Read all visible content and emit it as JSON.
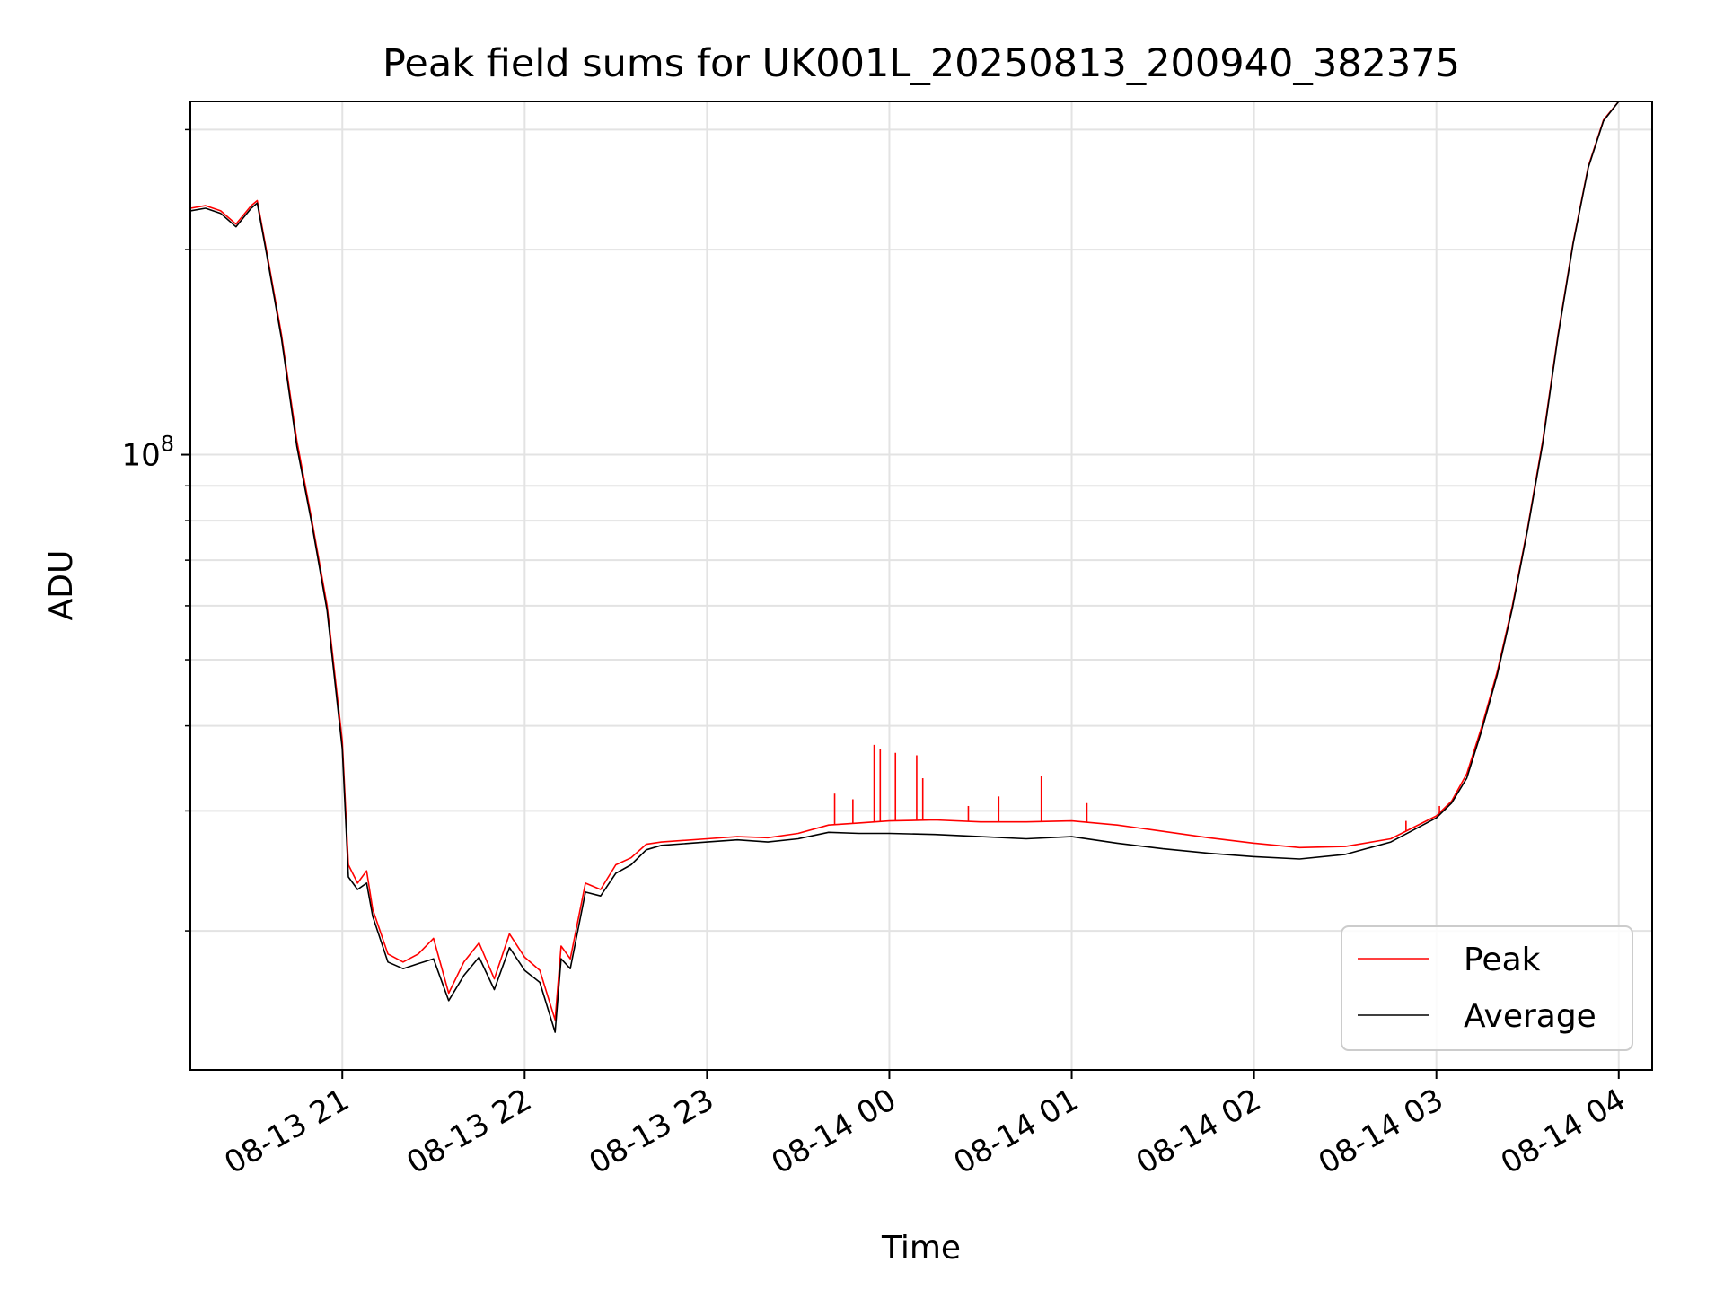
{
  "chart_data": {
    "type": "line",
    "title": "Peak field sums for UK001L_20250813_200940_382375",
    "xlabel": "Time",
    "ylabel": "ADU",
    "y_scale": "log",
    "ylim": [
      12500000,
      330000000
    ],
    "xlim": [
      "2025-08-13 20:10",
      "2025-08-14 04:11"
    ],
    "x_ticks": [
      {
        "t": "2025-08-13 21:00",
        "label": "08-13 21"
      },
      {
        "t": "2025-08-13 22:00",
        "label": "08-13 22"
      },
      {
        "t": "2025-08-13 23:00",
        "label": "08-13 23"
      },
      {
        "t": "2025-08-14 00:00",
        "label": "08-14 00"
      },
      {
        "t": "2025-08-14 01:00",
        "label": "08-14 01"
      },
      {
        "t": "2025-08-14 02:00",
        "label": "08-14 02"
      },
      {
        "t": "2025-08-14 03:00",
        "label": "08-14 03"
      },
      {
        "t": "2025-08-14 04:00",
        "label": "08-14 04"
      }
    ],
    "y_ticks": [
      {
        "value": 100000000,
        "label": "10",
        "exponent": "8"
      }
    ],
    "y_minor_ticks": [
      20000000,
      30000000,
      40000000,
      50000000,
      60000000,
      70000000,
      80000000,
      90000000,
      200000000,
      300000000
    ],
    "grid": true,
    "legend": {
      "position": "lower-right",
      "entries": [
        "Peak",
        "Average"
      ]
    },
    "series": [
      {
        "name": "Peak",
        "color": "#ff0000",
        "points": [
          [
            "2025-08-13 20:10",
            230000000
          ],
          [
            "2025-08-13 20:15",
            232000000
          ],
          [
            "2025-08-13 20:20",
            228000000
          ],
          [
            "2025-08-13 20:25",
            218000000
          ],
          [
            "2025-08-13 20:30",
            232000000
          ],
          [
            "2025-08-13 20:32",
            236000000
          ],
          [
            "2025-08-13 20:35",
            200000000
          ],
          [
            "2025-08-13 20:40",
            150000000
          ],
          [
            "2025-08-13 20:45",
            105000000
          ],
          [
            "2025-08-13 20:50",
            80000000
          ],
          [
            "2025-08-13 20:55",
            60000000
          ],
          [
            "2025-08-13 21:00",
            38000000
          ],
          [
            "2025-08-13 21:02",
            25000000
          ],
          [
            "2025-08-13 21:05",
            23500000
          ],
          [
            "2025-08-13 21:08",
            24500000
          ],
          [
            "2025-08-13 21:10",
            21500000
          ],
          [
            "2025-08-13 21:15",
            18500000
          ],
          [
            "2025-08-13 21:20",
            18000000
          ],
          [
            "2025-08-13 21:25",
            18500000
          ],
          [
            "2025-08-13 21:30",
            19500000
          ],
          [
            "2025-08-13 21:35",
            16200000
          ],
          [
            "2025-08-13 21:40",
            18000000
          ],
          [
            "2025-08-13 21:45",
            19200000
          ],
          [
            "2025-08-13 21:50",
            17000000
          ],
          [
            "2025-08-13 21:55",
            19800000
          ],
          [
            "2025-08-13 22:00",
            18300000
          ],
          [
            "2025-08-13 22:05",
            17500000
          ],
          [
            "2025-08-13 22:10",
            14800000
          ],
          [
            "2025-08-13 22:12",
            19000000
          ],
          [
            "2025-08-13 22:15",
            18200000
          ],
          [
            "2025-08-13 22:20",
            23500000
          ],
          [
            "2025-08-13 22:25",
            23000000
          ],
          [
            "2025-08-13 22:30",
            25000000
          ],
          [
            "2025-08-13 22:35",
            25600000
          ],
          [
            "2025-08-13 22:40",
            26800000
          ],
          [
            "2025-08-13 22:45",
            27000000
          ],
          [
            "2025-08-13 23:00",
            27300000
          ],
          [
            "2025-08-13 23:10",
            27500000
          ],
          [
            "2025-08-13 23:20",
            27400000
          ],
          [
            "2025-08-13 23:30",
            27800000
          ],
          [
            "2025-08-13 23:40",
            28600000
          ],
          [
            "2025-08-13 23:50",
            28800000
          ],
          [
            "2025-08-14 00:00",
            29000000
          ],
          [
            "2025-08-14 00:15",
            29100000
          ],
          [
            "2025-08-14 00:30",
            28900000
          ],
          [
            "2025-08-14 00:45",
            28900000
          ],
          [
            "2025-08-14 01:00",
            29000000
          ],
          [
            "2025-08-14 01:15",
            28600000
          ],
          [
            "2025-08-14 01:30",
            28000000
          ],
          [
            "2025-08-14 01:45",
            27400000
          ],
          [
            "2025-08-14 02:00",
            26900000
          ],
          [
            "2025-08-14 02:15",
            26500000
          ],
          [
            "2025-08-14 02:30",
            26600000
          ],
          [
            "2025-08-14 02:45",
            27300000
          ],
          [
            "2025-08-14 03:00",
            29500000
          ],
          [
            "2025-08-14 03:05",
            31000000
          ],
          [
            "2025-08-14 03:10",
            34000000
          ],
          [
            "2025-08-14 03:15",
            40000000
          ],
          [
            "2025-08-14 03:20",
            48000000
          ],
          [
            "2025-08-14 03:25",
            60000000
          ],
          [
            "2025-08-14 03:30",
            78000000
          ],
          [
            "2025-08-14 03:35",
            105000000
          ],
          [
            "2025-08-14 03:40",
            150000000
          ],
          [
            "2025-08-14 03:45",
            205000000
          ],
          [
            "2025-08-14 03:50",
            265000000
          ],
          [
            "2025-08-14 03:55",
            310000000
          ],
          [
            "2025-08-14 04:00",
            330000000
          ],
          [
            "2025-08-14 04:05",
            330000000
          ],
          [
            "2025-08-14 04:11",
            330000000
          ]
        ],
        "spikes": [
          [
            "2025-08-13 23:42",
            31800000
          ],
          [
            "2025-08-13 23:48",
            31200000
          ],
          [
            "2025-08-13 23:55",
            37500000
          ],
          [
            "2025-08-13 23:57",
            37000000
          ],
          [
            "2025-08-14 00:02",
            36500000
          ],
          [
            "2025-08-14 00:09",
            36200000
          ],
          [
            "2025-08-14 00:11",
            33500000
          ],
          [
            "2025-08-14 00:26",
            30500000
          ],
          [
            "2025-08-14 00:36",
            31500000
          ],
          [
            "2025-08-14 00:50",
            33800000
          ],
          [
            "2025-08-14 01:05",
            30800000
          ],
          [
            "2025-08-14 02:50",
            29000000
          ],
          [
            "2025-08-14 03:01",
            30500000
          ]
        ]
      },
      {
        "name": "Average",
        "color": "#000000",
        "points": [
          [
            "2025-08-13 20:10",
            228000000
          ],
          [
            "2025-08-13 20:15",
            230000000
          ],
          [
            "2025-08-13 20:20",
            226000000
          ],
          [
            "2025-08-13 20:25",
            216000000
          ],
          [
            "2025-08-13 20:30",
            230000000
          ],
          [
            "2025-08-13 20:32",
            234000000
          ],
          [
            "2025-08-13 20:35",
            198000000
          ],
          [
            "2025-08-13 20:40",
            148000000
          ],
          [
            "2025-08-13 20:45",
            103000000
          ],
          [
            "2025-08-13 20:50",
            79000000
          ],
          [
            "2025-08-13 20:55",
            59000000
          ],
          [
            "2025-08-13 21:00",
            37000000
          ],
          [
            "2025-08-13 21:02",
            24000000
          ],
          [
            "2025-08-13 21:05",
            23000000
          ],
          [
            "2025-08-13 21:08",
            23500000
          ],
          [
            "2025-08-13 21:10",
            21000000
          ],
          [
            "2025-08-13 21:15",
            18000000
          ],
          [
            "2025-08-13 21:20",
            17600000
          ],
          [
            "2025-08-13 21:25",
            17900000
          ],
          [
            "2025-08-13 21:30",
            18200000
          ],
          [
            "2025-08-13 21:35",
            15800000
          ],
          [
            "2025-08-13 21:40",
            17200000
          ],
          [
            "2025-08-13 21:45",
            18300000
          ],
          [
            "2025-08-13 21:50",
            16400000
          ],
          [
            "2025-08-13 21:55",
            18900000
          ],
          [
            "2025-08-13 22:00",
            17500000
          ],
          [
            "2025-08-13 22:05",
            16800000
          ],
          [
            "2025-08-13 22:10",
            14200000
          ],
          [
            "2025-08-13 22:12",
            18200000
          ],
          [
            "2025-08-13 22:15",
            17600000
          ],
          [
            "2025-08-13 22:20",
            22800000
          ],
          [
            "2025-08-13 22:25",
            22500000
          ],
          [
            "2025-08-13 22:30",
            24300000
          ],
          [
            "2025-08-13 22:35",
            25000000
          ],
          [
            "2025-08-13 22:40",
            26300000
          ],
          [
            "2025-08-13 22:45",
            26700000
          ],
          [
            "2025-08-13 23:00",
            27000000
          ],
          [
            "2025-08-13 23:10",
            27200000
          ],
          [
            "2025-08-13 23:20",
            27000000
          ],
          [
            "2025-08-13 23:30",
            27300000
          ],
          [
            "2025-08-13 23:40",
            27900000
          ],
          [
            "2025-08-13 23:50",
            27800000
          ],
          [
            "2025-08-14 00:00",
            27800000
          ],
          [
            "2025-08-14 00:15",
            27700000
          ],
          [
            "2025-08-14 00:30",
            27500000
          ],
          [
            "2025-08-14 00:45",
            27300000
          ],
          [
            "2025-08-14 01:00",
            27500000
          ],
          [
            "2025-08-14 01:15",
            26900000
          ],
          [
            "2025-08-14 01:30",
            26400000
          ],
          [
            "2025-08-14 01:45",
            26000000
          ],
          [
            "2025-08-14 02:00",
            25700000
          ],
          [
            "2025-08-14 02:15",
            25500000
          ],
          [
            "2025-08-14 02:30",
            25900000
          ],
          [
            "2025-08-14 02:45",
            27000000
          ],
          [
            "2025-08-14 03:00",
            29300000
          ],
          [
            "2025-08-14 03:05",
            30800000
          ],
          [
            "2025-08-14 03:10",
            33500000
          ],
          [
            "2025-08-14 03:15",
            39500000
          ],
          [
            "2025-08-14 03:20",
            47500000
          ],
          [
            "2025-08-14 03:25",
            59500000
          ],
          [
            "2025-08-14 03:30",
            77500000
          ],
          [
            "2025-08-14 03:35",
            104000000
          ],
          [
            "2025-08-14 03:40",
            149000000
          ],
          [
            "2025-08-14 03:45",
            204000000
          ],
          [
            "2025-08-14 03:50",
            264000000
          ],
          [
            "2025-08-14 03:55",
            309000000
          ],
          [
            "2025-08-14 04:00",
            330000000
          ],
          [
            "2025-08-14 04:05",
            330000000
          ],
          [
            "2025-08-14 04:11",
            330000000
          ]
        ]
      }
    ]
  }
}
